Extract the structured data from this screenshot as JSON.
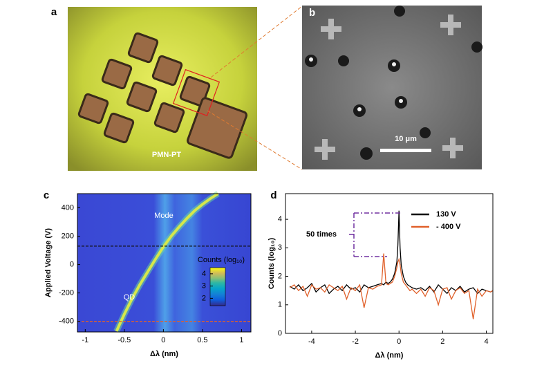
{
  "images": [
    {
      "panel": "a",
      "annotation": "PMN-PT"
    },
    {
      "panel": "b",
      "scale_bar": "10 μm"
    }
  ],
  "chart_data": [
    {
      "type": "heatmap",
      "panel": "c",
      "x_label": "Δλ (nm)",
      "y_label": "Applied Voltage (V)",
      "xlim": [
        -1.1,
        1.12
      ],
      "ylim": [
        -475,
        500
      ],
      "xticks": [
        -1,
        -0.5,
        0,
        0.5,
        1
      ],
      "yticks": [
        -400,
        -200,
        0,
        200,
        400
      ],
      "annotations": [
        "Mode",
        "QD"
      ],
      "curve": {
        "color": "#d4e84c",
        "x": [
          -0.6,
          -0.5,
          -0.4,
          -0.3,
          -0.2,
          -0.1,
          0,
          0.1,
          0.2,
          0.3,
          0.4,
          0.5,
          0.6,
          0.7
        ],
        "y": [
          -470,
          -350,
          -240,
          -140,
          -50,
          40,
          125,
          200,
          265,
          325,
          380,
          425,
          465,
          500
        ]
      },
      "hlines": [
        {
          "value": 130,
          "color": "#111111"
        },
        {
          "value": -400,
          "color": "#e0602a"
        }
      ],
      "colorbar": {
        "label": "Counts (log₁₀)",
        "lim": [
          1.4,
          4.5
        ],
        "ticks": [
          2,
          3,
          4
        ]
      }
    },
    {
      "type": "line",
      "panel": "d",
      "x_label": "Δλ (nm)",
      "y_label": "Counts (log₁₀)",
      "xlim": [
        -5.2,
        4.3
      ],
      "ylim": [
        0,
        4.9
      ],
      "xticks": [
        -4,
        -2,
        0,
        2,
        4
      ],
      "yticks": [
        0,
        1,
        2,
        3,
        4
      ],
      "annotation": "50 times",
      "legend": "upper right",
      "x": [
        -5.0,
        -4.8,
        -4.6,
        -4.4,
        -4.2,
        -4.0,
        -3.8,
        -3.6,
        -3.4,
        -3.2,
        -3.0,
        -2.8,
        -2.6,
        -2.4,
        -2.2,
        -2.0,
        -1.8,
        -1.6,
        -1.4,
        -1.2,
        -1.0,
        -0.8,
        -0.7,
        -0.6,
        -0.5,
        -0.4,
        -0.3,
        -0.2,
        -0.1,
        -0.05,
        0,
        0.05,
        0.1,
        0.2,
        0.3,
        0.4,
        0.5,
        0.6,
        0.8,
        1.0,
        1.2,
        1.4,
        1.6,
        1.8,
        2.0,
        2.2,
        2.4,
        2.6,
        2.8,
        3.0,
        3.2,
        3.4,
        3.6,
        3.8,
        4.0,
        4.2,
        4.3
      ],
      "series": [
        {
          "name": "130 V",
          "color": "#000000",
          "values": [
            1.65,
            1.55,
            1.7,
            1.5,
            1.6,
            1.75,
            1.45,
            1.6,
            1.7,
            1.4,
            1.55,
            1.65,
            1.5,
            1.7,
            1.55,
            1.6,
            1.45,
            1.7,
            1.6,
            1.65,
            1.7,
            1.75,
            1.7,
            1.8,
            1.75,
            1.8,
            1.9,
            2.1,
            2.5,
            3.1,
            4.3,
            3.0,
            2.4,
            2.0,
            1.8,
            1.7,
            1.65,
            1.6,
            1.55,
            1.6,
            1.5,
            1.65,
            1.45,
            1.7,
            1.55,
            1.4,
            1.6,
            1.5,
            1.65,
            1.45,
            1.55,
            1.6,
            1.4,
            1.55,
            1.5,
            1.45,
            1.5
          ]
        },
        {
          "name": "- 400 V",
          "color": "#e0602a",
          "values": [
            1.6,
            1.7,
            1.5,
            1.65,
            1.3,
            1.7,
            1.55,
            1.6,
            1.45,
            1.7,
            1.6,
            1.5,
            1.65,
            1.2,
            1.6,
            1.5,
            1.7,
            0.9,
            1.6,
            1.55,
            1.65,
            1.7,
            2.8,
            1.75,
            1.7,
            1.75,
            1.8,
            2.0,
            2.3,
            2.5,
            2.6,
            2.4,
            2.1,
            1.8,
            1.7,
            1.6,
            1.5,
            1.55,
            1.4,
            1.55,
            1.3,
            1.6,
            1.5,
            1.0,
            1.55,
            1.6,
            1.2,
            1.5,
            1.6,
            1.4,
            1.5,
            0.5,
            1.55,
            1.3,
            1.5,
            1.45,
            1.5
          ]
        }
      ]
    }
  ]
}
